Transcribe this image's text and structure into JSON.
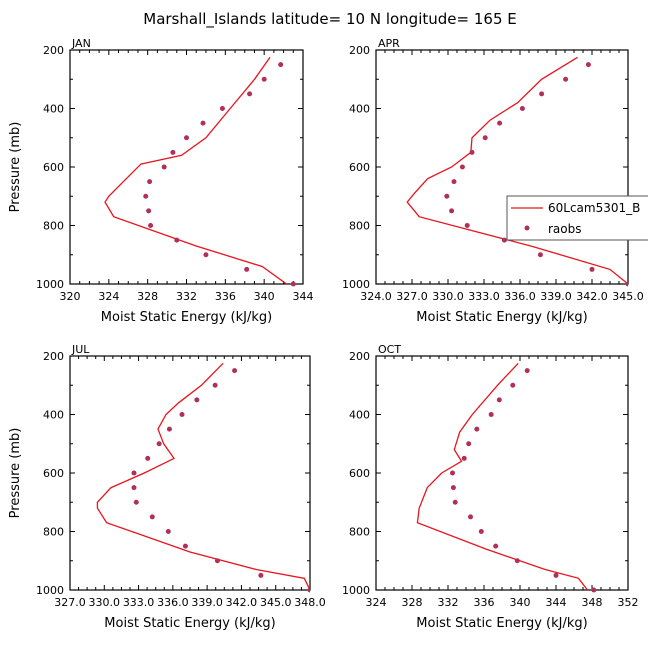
{
  "title": "Marshall_Islands   latitude=  10 N longitude=  165 E",
  "colors": {
    "model": "#e8141e",
    "obs": "#b0305a",
    "axis": "#000000"
  },
  "legend": {
    "model_label": "60Lcam5301_B",
    "obs_label": "raobs",
    "panel": "APR"
  },
  "chart_data": [
    {
      "type": "line",
      "panel": "JAN",
      "title": "JAN",
      "xlabel": "Moist Static Energy (kJ/kg)",
      "ylabel": "Pressure (mb)",
      "xlim": [
        320,
        344
      ],
      "ylim": [
        1000,
        200
      ],
      "xticks": [
        320,
        324,
        328,
        332,
        336,
        340,
        344
      ],
      "xtick_labels": [
        "320",
        "324",
        "328",
        "332",
        "336",
        "340",
        "344"
      ],
      "yticks": [
        200,
        400,
        600,
        800,
        1000
      ],
      "ytick_labels": [
        "200",
        "400",
        "600",
        "800",
        "1000"
      ],
      "series": [
        {
          "name": "60Lcam5301_B",
          "kind": "line",
          "points": [
            [
              340.6,
              225
            ],
            [
              339,
              300
            ],
            [
              336.5,
              400
            ],
            [
              334,
              500
            ],
            [
              331.5,
              560
            ],
            [
              327.3,
              590
            ],
            [
              325.5,
              650
            ],
            [
              324,
              700
            ],
            [
              323.6,
              720
            ],
            [
              324.5,
              770
            ],
            [
              333,
              870
            ],
            [
              339.8,
              940
            ],
            [
              342.3,
              1000
            ]
          ]
        },
        {
          "name": "raobs",
          "kind": "markers",
          "points": [
            [
              341.7,
              250
            ],
            [
              340,
              300
            ],
            [
              338.5,
              350
            ],
            [
              335.7,
              400
            ],
            [
              333.7,
              450
            ],
            [
              332,
              500
            ],
            [
              330.6,
              550
            ],
            [
              329.7,
              600
            ],
            [
              328.2,
              650
            ],
            [
              327.8,
              700
            ],
            [
              328.1,
              750
            ],
            [
              328.3,
              800
            ],
            [
              331,
              850
            ],
            [
              334,
              900
            ],
            [
              338.2,
              950
            ],
            [
              343,
              1000
            ]
          ]
        }
      ]
    },
    {
      "type": "line",
      "panel": "APR",
      "title": "APR",
      "xlabel": "Moist Static Energy (kJ/kg)",
      "ylabel": "",
      "xlim": [
        324.0,
        345.0
      ],
      "ylim": [
        1000,
        200
      ],
      "xticks": [
        324.0,
        327.0,
        330.0,
        333.0,
        336.0,
        339.0,
        342.0,
        345.0
      ],
      "xtick_labels": [
        "324.0",
        "327.0",
        "330.0",
        "333.0",
        "336.0",
        "339.0",
        "342.0",
        "345.0"
      ],
      "yticks": [
        200,
        400,
        600,
        800,
        1000
      ],
      "ytick_labels": [
        "200",
        "400",
        "600",
        "800",
        "1000"
      ],
      "series": [
        {
          "name": "60Lcam5301_B",
          "kind": "line",
          "points": [
            [
              340.8,
              225
            ],
            [
              337.8,
              300
            ],
            [
              335.8,
              380
            ],
            [
              333.5,
              440
            ],
            [
              332,
              500
            ],
            [
              331.9,
              550
            ],
            [
              330.3,
              600
            ],
            [
              328.3,
              640
            ],
            [
              327.2,
              690
            ],
            [
              326.6,
              720
            ],
            [
              327.6,
              770
            ],
            [
              336.9,
              870
            ],
            [
              343.5,
              950
            ],
            [
              345,
              1000
            ]
          ]
        },
        {
          "name": "raobs",
          "kind": "markers",
          "points": [
            [
              341.7,
              250
            ],
            [
              339.8,
              300
            ],
            [
              337.8,
              350
            ],
            [
              336.2,
              400
            ],
            [
              334.3,
              450
            ],
            [
              333.1,
              500
            ],
            [
              332,
              550
            ],
            [
              331.2,
              600
            ],
            [
              330.5,
              650
            ],
            [
              329.9,
              700
            ],
            [
              330.3,
              750
            ],
            [
              331.6,
              800
            ],
            [
              334.7,
              850
            ],
            [
              337.7,
              900
            ],
            [
              342,
              950
            ],
            [
              345,
              1000
            ]
          ]
        }
      ]
    },
    {
      "type": "line",
      "panel": "JUL",
      "title": "JUL",
      "xlabel": "Moist Static Energy (kJ/kg)",
      "ylabel": "Pressure (mb)",
      "xlim": [
        327.0,
        348.0
      ],
      "ylim": [
        1000,
        200
      ],
      "xticks": [
        327.0,
        330.0,
        333.0,
        336.0,
        339.0,
        342.0,
        345.0,
        348.0
      ],
      "xtick_labels": [
        "327.0",
        "330.0",
        "333.0",
        "336.0",
        "339.0",
        "342.0",
        "345.0",
        "348.0"
      ],
      "yticks": [
        200,
        400,
        600,
        800,
        1000
      ],
      "ytick_labels": [
        "200",
        "400",
        "600",
        "800",
        "1000"
      ],
      "series": [
        {
          "name": "60Lcam5301_B",
          "kind": "line",
          "points": [
            [
              340.4,
              225
            ],
            [
              338.5,
              300
            ],
            [
              336.5,
              360
            ],
            [
              335.4,
              400
            ],
            [
              334.7,
              450
            ],
            [
              335.2,
              500
            ],
            [
              336.1,
              550
            ],
            [
              333.5,
              600
            ],
            [
              330.6,
              650
            ],
            [
              329.4,
              700
            ],
            [
              329.4,
              720
            ],
            [
              330.2,
              770
            ],
            [
              337.5,
              870
            ],
            [
              343.3,
              930
            ],
            [
              347.5,
              960
            ],
            [
              348,
              1000
            ]
          ]
        },
        {
          "name": "raobs",
          "kind": "markers",
          "points": [
            [
              341.4,
              250
            ],
            [
              339.7,
              300
            ],
            [
              338.1,
              350
            ],
            [
              336.8,
              400
            ],
            [
              335.7,
              450
            ],
            [
              334.8,
              500
            ],
            [
              333.8,
              550
            ],
            [
              332.6,
              600
            ],
            [
              332.6,
              650
            ],
            [
              332.8,
              700
            ],
            [
              334.2,
              750
            ],
            [
              335.6,
              800
            ],
            [
              337.1,
              850
            ],
            [
              339.9,
              900
            ],
            [
              343.7,
              950
            ],
            [
              348,
              1000
            ]
          ]
        }
      ]
    },
    {
      "type": "line",
      "panel": "OCT",
      "title": "OCT",
      "xlabel": "Moist Static Energy (kJ/kg)",
      "ylabel": "",
      "xlim": [
        324,
        352
      ],
      "ylim": [
        1000,
        200
      ],
      "xticks": [
        324,
        328,
        332,
        336,
        340,
        344,
        348,
        352
      ],
      "xtick_labels": [
        "324",
        "328",
        "332",
        "336",
        "340",
        "344",
        "348",
        "352"
      ],
      "yticks": [
        200,
        400,
        600,
        800,
        1000
      ],
      "ytick_labels": [
        "200",
        "400",
        "600",
        "800",
        "1000"
      ],
      "series": [
        {
          "name": "60Lcam5301_B",
          "kind": "line",
          "points": [
            [
              339.8,
              225
            ],
            [
              337.5,
              300
            ],
            [
              334.7,
              400
            ],
            [
              333.3,
              460
            ],
            [
              332.7,
              520
            ],
            [
              333.5,
              560
            ],
            [
              331.3,
              600
            ],
            [
              329.7,
              650
            ],
            [
              328.8,
              720
            ],
            [
              328.6,
              770
            ],
            [
              336.2,
              860
            ],
            [
              342.8,
              930
            ],
            [
              346.5,
              960
            ],
            [
              347.5,
              1000
            ]
          ]
        },
        {
          "name": "raobs",
          "kind": "markers",
          "points": [
            [
              340.8,
              250
            ],
            [
              339.2,
              300
            ],
            [
              337.7,
              350
            ],
            [
              336.8,
              400
            ],
            [
              335.2,
              450
            ],
            [
              334.3,
              500
            ],
            [
              333.8,
              550
            ],
            [
              332.5,
              600
            ],
            [
              332.6,
              650
            ],
            [
              332.8,
              700
            ],
            [
              334.5,
              750
            ],
            [
              335.7,
              800
            ],
            [
              337.3,
              850
            ],
            [
              339.7,
              900
            ],
            [
              344,
              950
            ],
            [
              348.2,
              1000
            ]
          ]
        }
      ]
    }
  ]
}
